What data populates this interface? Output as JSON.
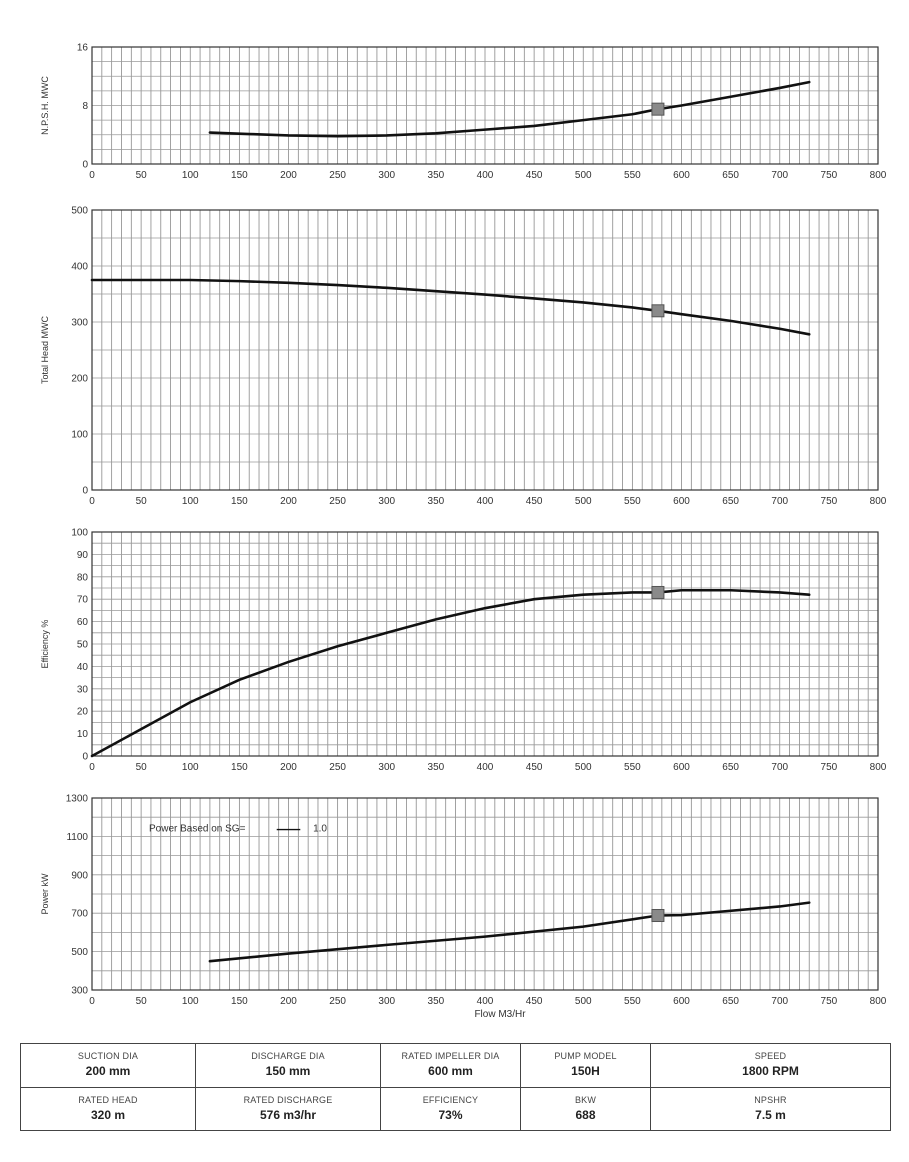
{
  "chart_data": [
    {
      "type": "line",
      "xlabel": "",
      "ylabel": "N.P.S.H. MWC",
      "xlim": [
        0,
        800
      ],
      "ylim": [
        0,
        16
      ],
      "x_ticks": [
        0,
        50,
        100,
        150,
        200,
        250,
        300,
        350,
        400,
        450,
        500,
        550,
        600,
        650,
        700,
        750,
        800
      ],
      "y_ticks": [
        0,
        8,
        16
      ],
      "grid": true,
      "series": [
        {
          "x": [
            120,
            160,
            200,
            250,
            300,
            350,
            400,
            450,
            500,
            550,
            576,
            600,
            650,
            700,
            730
          ],
          "y": [
            4.3,
            4.1,
            3.9,
            3.8,
            3.9,
            4.2,
            4.7,
            5.2,
            6.0,
            6.8,
            7.5,
            8.0,
            9.2,
            10.4,
            11.2
          ]
        }
      ],
      "rated_point": {
        "x": 576,
        "y": 7.5
      }
    },
    {
      "type": "line",
      "xlabel": "",
      "ylabel": "Total Head MWC",
      "xlim": [
        0,
        800
      ],
      "ylim": [
        0,
        500
      ],
      "x_ticks": [
        0,
        50,
        100,
        150,
        200,
        250,
        300,
        350,
        400,
        450,
        500,
        550,
        600,
        650,
        700,
        750,
        800
      ],
      "y_ticks": [
        0,
        100,
        200,
        300,
        400,
        500
      ],
      "grid": true,
      "series": [
        {
          "x": [
            0,
            50,
            100,
            150,
            200,
            250,
            300,
            350,
            400,
            450,
            500,
            550,
            576,
            600,
            650,
            700,
            730
          ],
          "y": [
            375,
            375,
            375,
            373,
            370,
            366,
            361,
            355,
            349,
            342,
            335,
            326,
            320,
            314,
            302,
            288,
            278
          ]
        }
      ],
      "rated_point": {
        "x": 576,
        "y": 320
      }
    },
    {
      "type": "line",
      "xlabel": "",
      "ylabel": "Efficiency %",
      "xlim": [
        0,
        800
      ],
      "ylim": [
        0,
        100
      ],
      "x_ticks": [
        0,
        50,
        100,
        150,
        200,
        250,
        300,
        350,
        400,
        450,
        500,
        550,
        600,
        650,
        700,
        750,
        800
      ],
      "y_ticks": [
        0,
        10,
        20,
        30,
        40,
        50,
        60,
        70,
        80,
        90,
        100
      ],
      "grid": true,
      "series": [
        {
          "x": [
            0,
            50,
            100,
            150,
            200,
            250,
            300,
            350,
            400,
            450,
            500,
            550,
            576,
            600,
            650,
            700,
            730
          ],
          "y": [
            0,
            12,
            24,
            34,
            42,
            49,
            55,
            61,
            66,
            70,
            72,
            73,
            73,
            74,
            74,
            73,
            72
          ]
        }
      ],
      "rated_point": {
        "x": 576,
        "y": 73
      }
    },
    {
      "type": "line",
      "xlabel": "Flow M3/Hr",
      "ylabel": "Power kW",
      "xlim": [
        0,
        800
      ],
      "ylim": [
        300,
        1300
      ],
      "x_ticks": [
        0,
        50,
        100,
        150,
        200,
        250,
        300,
        350,
        400,
        450,
        500,
        550,
        600,
        650,
        700,
        750,
        800
      ],
      "y_ticks": [
        300,
        500,
        700,
        900,
        1100,
        1300
      ],
      "grid": true,
      "annotation": {
        "label": "Power Based on SG=",
        "value": "1.0"
      },
      "series": [
        {
          "x": [
            120,
            200,
            300,
            400,
            500,
            576,
            600,
            700,
            730
          ],
          "y": [
            450,
            490,
            535,
            578,
            630,
            688,
            690,
            735,
            755
          ]
        }
      ],
      "rated_point": {
        "x": 576,
        "y": 688
      }
    }
  ],
  "spec_table": {
    "suction_dia": {
      "label": "SUCTION DIA",
      "value": "200 mm"
    },
    "discharge_dia": {
      "label": "DISCHARGE DIA",
      "value": "150 mm"
    },
    "rated_impeller_dia": {
      "label": "RATED IMPELLER DIA",
      "value": "600 mm"
    },
    "pump_model": {
      "label": "PUMP MODEL",
      "value": "150H"
    },
    "speed": {
      "label": "SPEED",
      "value": "1800 RPM"
    },
    "rated_head": {
      "label": "RATED HEAD",
      "value": "320 m"
    },
    "rated_discharge": {
      "label": "RATED DISCHARGE",
      "value": "576 m3/hr"
    },
    "efficiency": {
      "label": "EFFICIENCY",
      "value": "73%"
    },
    "bkw": {
      "label": "BKW",
      "value": "688"
    },
    "npshr": {
      "label": "NPSHR",
      "value": "7.5 m"
    }
  }
}
